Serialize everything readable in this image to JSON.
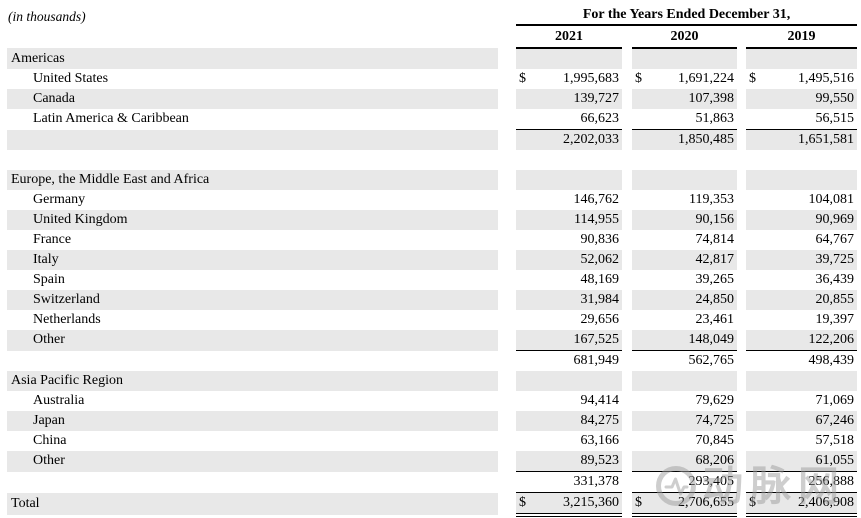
{
  "page": {
    "units_label": "(in thousands)",
    "column_group_header": "For the Years Ended December 31,",
    "years": [
      "2021",
      "2020",
      "2019"
    ],
    "currency_symbol": "$"
  },
  "table": {
    "sections": [
      {
        "header": "Americas",
        "items": [
          {
            "label": "United States",
            "dollar": true,
            "values": [
              "1,995,683",
              "1,691,224",
              "1,495,516"
            ]
          },
          {
            "label": "Canada",
            "values": [
              "139,727",
              "107,398",
              "99,550"
            ]
          },
          {
            "label": "Latin America & Caribbean",
            "rule_below": true,
            "values": [
              "66,623",
              "51,863",
              "56,515"
            ]
          }
        ],
        "subtotal": {
          "values": [
            "2,202,033",
            "1,850,485",
            "1,651,581"
          ]
        },
        "spacer_after": true
      },
      {
        "header": "Europe, the Middle East and Africa",
        "items": [
          {
            "label": "Germany",
            "values": [
              "146,762",
              "119,353",
              "104,081"
            ]
          },
          {
            "label": "United Kingdom",
            "values": [
              "114,955",
              "90,156",
              "90,969"
            ]
          },
          {
            "label": "France",
            "values": [
              "90,836",
              "74,814",
              "64,767"
            ]
          },
          {
            "label": "Italy",
            "values": [
              "52,062",
              "42,817",
              "39,725"
            ]
          },
          {
            "label": "Spain",
            "values": [
              "48,169",
              "39,265",
              "36,439"
            ]
          },
          {
            "label": "Switzerland",
            "values": [
              "31,984",
              "24,850",
              "20,855"
            ]
          },
          {
            "label": "Netherlands",
            "values": [
              "29,656",
              "23,461",
              "19,397"
            ]
          },
          {
            "label": "Other",
            "rule_below": true,
            "values": [
              "167,525",
              "148,049",
              "122,206"
            ]
          }
        ],
        "subtotal": {
          "values": [
            "681,949",
            "562,765",
            "498,439"
          ]
        },
        "spacer_after": false
      },
      {
        "header": "Asia Pacific Region",
        "items": [
          {
            "label": "Australia",
            "values": [
              "94,414",
              "79,629",
              "71,069"
            ]
          },
          {
            "label": "Japan",
            "values": [
              "84,275",
              "74,725",
              "67,246"
            ]
          },
          {
            "label": "China",
            "values": [
              "63,166",
              "70,845",
              "57,518"
            ]
          },
          {
            "label": "Other",
            "rule_below": true,
            "values": [
              "89,523",
              "68,206",
              "61,055"
            ]
          }
        ],
        "subtotal": {
          "values": [
            "331,378",
            "293,405",
            "256,888"
          ],
          "rule_below": true
        },
        "spacer_after": false
      }
    ],
    "total": {
      "label": "Total",
      "dollar": true,
      "double_rule_below": true,
      "values": [
        "3,215,360",
        "2,706,655",
        "2,406,908"
      ]
    }
  },
  "watermark": {
    "text": "动脉网"
  },
  "colors": {
    "stripe": "#e8e8e8",
    "rule": "#000000",
    "watermark": "#9e9e9e"
  }
}
